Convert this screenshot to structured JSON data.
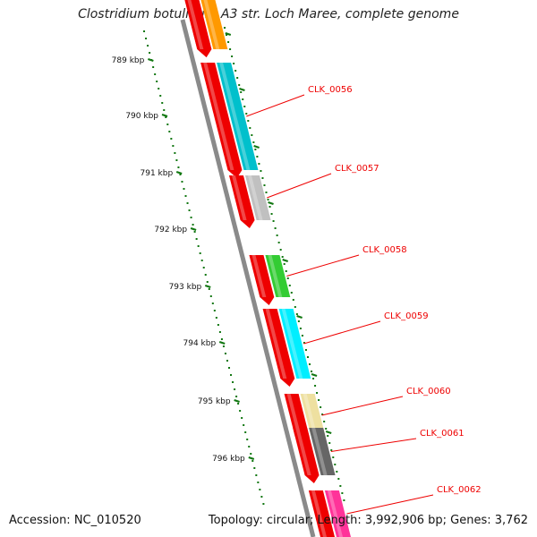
{
  "title": "Clostridium botulinum A3 str. Loch Maree, complete genome",
  "footer": {
    "accession_text": "Accession: NC_010520",
    "stats_text": "Topology: circular; Length: 3,992,906 bp; Genes: 3,762"
  },
  "ruler": {
    "labels": [
      "789 kbp",
      "790 kbp",
      "791 kbp",
      "792 kbp",
      "793 kbp",
      "794 kbp",
      "795 kbp",
      "796 kbp"
    ]
  },
  "genes": [
    {
      "label": "",
      "color": "#ffddbb"
    },
    {
      "label": "",
      "color": "#ff9900"
    },
    {
      "label": "CLK_0056",
      "color": "#00c0cc"
    },
    {
      "label": "CLK_0057",
      "color": "#c0c0c0"
    },
    {
      "label": "CLK_0058",
      "color": "#33cc33"
    },
    {
      "label": "CLK_0059",
      "color": "#00eeff"
    },
    {
      "label": "CLK_0060",
      "color": "#eee0a0"
    },
    {
      "label": "CLK_0061",
      "color": "#666666"
    },
    {
      "label": "CLK_0062",
      "color": "#ff3399"
    }
  ],
  "colors": {
    "gene_label": "#ee0000",
    "backbone": "#888888",
    "ruler_ticks": "#117711",
    "cds_strand": "#ee0000"
  }
}
